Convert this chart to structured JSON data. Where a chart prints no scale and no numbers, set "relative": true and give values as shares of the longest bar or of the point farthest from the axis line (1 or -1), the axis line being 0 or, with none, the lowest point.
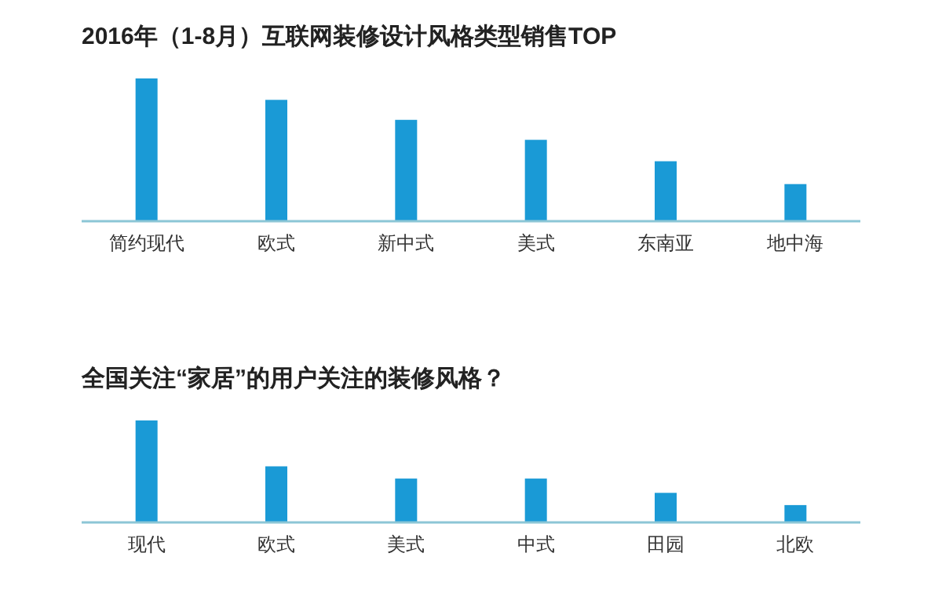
{
  "chart_data": [
    {
      "type": "bar",
      "title": "2016年（1-8月）互联网装修设计风格类型销售TOP",
      "categories": [
        "简约现代",
        "欧式",
        "新中式",
        "美式",
        "东南亚",
        "地中海"
      ],
      "values": [
        1,
        0.85,
        0.71,
        0.57,
        0.42,
        0.26
      ],
      "color": "#1a9ad6",
      "relative": true
    },
    {
      "type": "bar",
      "title": "全国关注“家居”的用户关注的装修风格？",
      "categories": [
        "现代",
        "欧式",
        "美式",
        "中式",
        "田园",
        "北欧"
      ],
      "values": [
        1,
        0.55,
        0.43,
        0.43,
        0.29,
        0.17
      ],
      "color": "#1a9ad6",
      "relative": true
    }
  ]
}
